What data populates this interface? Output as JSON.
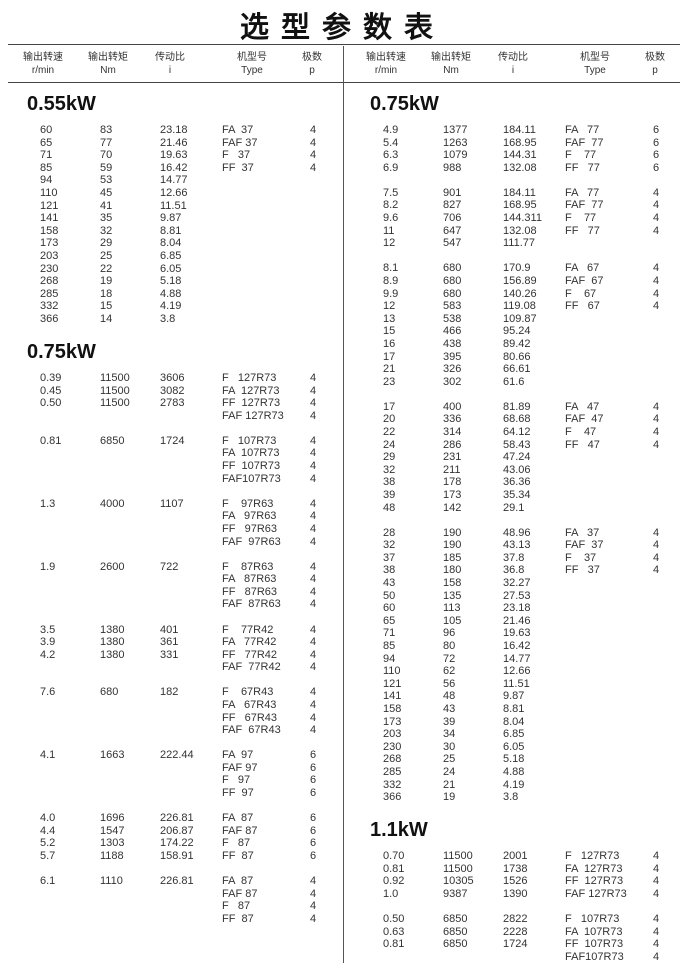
{
  "header": {
    "title": "选型参数表"
  },
  "panels": [
    {
      "columns": [
        {
          "name": "输出转速",
          "unit": "r/min"
        },
        {
          "name": "输出转矩",
          "unit": "Nm"
        },
        {
          "name": "传动比",
          "unit": "i"
        },
        {
          "name": "机型号",
          "unit": "Type"
        },
        {
          "name": "极数",
          "unit": "p"
        }
      ],
      "sections": [
        {
          "power": "0.55kW",
          "groups": [
            [
              [
                "60",
                "83",
                "23.18",
                "FA  37",
                "4"
              ],
              [
                "65",
                "77",
                "21.46",
                "FAF 37",
                "4"
              ],
              [
                "71",
                "70",
                "19.63",
                "F   37",
                "4"
              ],
              [
                "85",
                "59",
                "16.42",
                "FF  37",
                "4"
              ],
              [
                "94",
                "53",
                "14.77"
              ],
              [
                "110",
                "45",
                "12.66"
              ],
              [
                "121",
                "41",
                "11.51"
              ],
              [
                "141",
                "35",
                "9.87"
              ],
              [
                "158",
                "32",
                "8.81"
              ],
              [
                "173",
                "29",
                "8.04"
              ],
              [
                "203",
                "25",
                "6.85"
              ],
              [
                "230",
                "22",
                "6.05"
              ],
              [
                "268",
                "19",
                "5.18"
              ],
              [
                "285",
                "18",
                "4.88"
              ],
              [
                "332",
                "15",
                "4.19"
              ],
              [
                "366",
                "14",
                "3.8"
              ]
            ]
          ]
        },
        {
          "power": "0.75kW",
          "groups": [
            [
              [
                "0.39",
                "11500",
                "3606",
                "F   127R73",
                "4"
              ],
              [
                "0.45",
                "11500",
                "3082",
                "FA  127R73",
                "4"
              ],
              [
                "0.50",
                "11500",
                "2783",
                "FF  127R73",
                "4"
              ],
              [
                null,
                null,
                null,
                "FAF 127R73",
                "4"
              ]
            ],
            [
              [
                "0.81",
                "6850",
                "1724",
                "F   107R73",
                "4"
              ],
              [
                null,
                null,
                null,
                "FA  107R73",
                "4"
              ],
              [
                null,
                null,
                null,
                "FF  107R73",
                "4"
              ],
              [
                null,
                null,
                null,
                "FAF107R73",
                "4"
              ]
            ],
            [
              [
                "1.3",
                "4000",
                "1107",
                "F    97R63",
                "4"
              ],
              [
                null,
                null,
                null,
                "FA   97R63",
                "4"
              ],
              [
                null,
                null,
                null,
                "FF   97R63",
                "4"
              ],
              [
                null,
                null,
                null,
                "FAF  97R63",
                "4"
              ]
            ],
            [
              [
                "1.9",
                "2600",
                "722",
                "F    87R63",
                "4"
              ],
              [
                null,
                null,
                null,
                "FA   87R63",
                "4"
              ],
              [
                null,
                null,
                null,
                "FF   87R63",
                "4"
              ],
              [
                null,
                null,
                null,
                "FAF  87R63",
                "4"
              ]
            ],
            [
              [
                "3.5",
                "1380",
                "401",
                "F    77R42",
                "4"
              ],
              [
                "3.9",
                "1380",
                "361",
                "FA   77R42",
                "4"
              ],
              [
                "4.2",
                "1380",
                "331",
                "FF   77R42",
                "4"
              ],
              [
                null,
                null,
                null,
                "FAF  77R42",
                "4"
              ]
            ],
            [
              [
                "7.6",
                "680",
                "182",
                "F    67R43",
                "4"
              ],
              [
                null,
                null,
                null,
                "FA   67R43",
                "4"
              ],
              [
                null,
                null,
                null,
                "FF   67R43",
                "4"
              ],
              [
                null,
                null,
                null,
                "FAF  67R43",
                "4"
              ]
            ],
            [
              [
                "4.1",
                "1663",
                "222.44",
                "FA  97",
                "6"
              ],
              [
                null,
                null,
                null,
                "FAF 97",
                "6"
              ],
              [
                null,
                null,
                null,
                "F   97",
                "6"
              ],
              [
                null,
                null,
                null,
                "FF  97",
                "6"
              ]
            ],
            [
              [
                "4.0",
                "1696",
                "226.81",
                "FA  87",
                "6"
              ],
              [
                "4.4",
                "1547",
                "206.87",
                "FAF 87",
                "6"
              ],
              [
                "5.2",
                "1303",
                "174.22",
                "F   87",
                "6"
              ],
              [
                "5.7",
                "1188",
                "158.91",
                "FF  87",
                "6"
              ]
            ],
            [
              [
                "6.1",
                "1110",
                "226.81",
                "FA  87",
                "4"
              ],
              [
                null,
                null,
                null,
                "FAF 87",
                "4"
              ],
              [
                null,
                null,
                null,
                "F   87",
                "4"
              ],
              [
                null,
                null,
                null,
                "FF  87",
                "4"
              ]
            ]
          ]
        }
      ]
    },
    {
      "columns": [
        {
          "name": "输出转速",
          "unit": "r/min"
        },
        {
          "name": "输出转矩",
          "unit": "Nm"
        },
        {
          "name": "传动比",
          "unit": "i"
        },
        {
          "name": "机型号",
          "unit": "Type"
        },
        {
          "name": "极数",
          "unit": "p"
        }
      ],
      "sections": [
        {
          "power": "0.75kW",
          "groups": [
            [
              [
                "4.9",
                "1377",
                "184.11",
                "FA   77",
                "6"
              ],
              [
                "5.4",
                "1263",
                "168.95",
                "FAF  77",
                "6"
              ],
              [
                "6.3",
                "1079",
                "144.31",
                "F    77",
                "6"
              ],
              [
                "6.9",
                "988",
                "132.08",
                "FF   77",
                "6"
              ]
            ],
            [
              [
                "7.5",
                "901",
                "184.11",
                "FA   77",
                "4"
              ],
              [
                "8.2",
                "827",
                "168.95",
                "FAF  77",
                "4"
              ],
              [
                "9.6",
                "706",
                "144.311",
                "F    77",
                "4"
              ],
              [
                "11",
                "647",
                "132.08",
                "FF   77",
                "4"
              ],
              [
                "12",
                "547",
                "111.77"
              ]
            ],
            [
              [
                "8.1",
                "680",
                "170.9",
                "FA   67",
                "4"
              ],
              [
                "8.9",
                "680",
                "156.89",
                "FAF  67",
                "4"
              ],
              [
                "9.9",
                "680",
                "140.26",
                "F    67",
                "4"
              ],
              [
                "12",
                "583",
                "119.08",
                "FF   67",
                "4"
              ],
              [
                "13",
                "538",
                "109.87"
              ],
              [
                "15",
                "466",
                "95.24"
              ],
              [
                "16",
                "438",
                "89.42"
              ],
              [
                "17",
                "395",
                "80.66"
              ],
              [
                "21",
                "326",
                "66.61"
              ],
              [
                "23",
                "302",
                "61.6"
              ]
            ],
            [
              [
                "17",
                "400",
                "81.89",
                "FA   47",
                "4"
              ],
              [
                "20",
                "336",
                "68.68",
                "FAF  47",
                "4"
              ],
              [
                "22",
                "314",
                "64.12",
                "F    47",
                "4"
              ],
              [
                "24",
                "286",
                "58.43",
                "FF   47",
                "4"
              ],
              [
                "29",
                "231",
                "47.24"
              ],
              [
                "32",
                "211",
                "43.06"
              ],
              [
                "38",
                "178",
                "36.36"
              ],
              [
                "39",
                "173",
                "35.34"
              ],
              [
                "48",
                "142",
                "29.1"
              ]
            ],
            [
              [
                "28",
                "190",
                "48.96",
                "FA   37",
                "4"
              ],
              [
                "32",
                "190",
                "43.13",
                "FAF  37",
                "4"
              ],
              [
                "37",
                "185",
                "37.8",
                "F    37",
                "4"
              ],
              [
                "38",
                "180",
                "36.8",
                "FF   37",
                "4"
              ],
              [
                "43",
                "158",
                "32.27"
              ],
              [
                "50",
                "135",
                "27.53"
              ],
              [
                "60",
                "113",
                "23.18"
              ],
              [
                "65",
                "105",
                "21.46"
              ],
              [
                "71",
                "96",
                "19.63"
              ],
              [
                "85",
                "80",
                "16.42"
              ],
              [
                "94",
                "72",
                "14.77"
              ],
              [
                "110",
                "62",
                "12.66"
              ],
              [
                "121",
                "56",
                "11.51"
              ],
              [
                "141",
                "48",
                "9.87"
              ],
              [
                "158",
                "43",
                "8.81"
              ],
              [
                "173",
                "39",
                "8.04"
              ],
              [
                "203",
                "34",
                "6.85"
              ],
              [
                "230",
                "30",
                "6.05"
              ],
              [
                "268",
                "25",
                "5.18"
              ],
              [
                "285",
                "24",
                "4.88"
              ],
              [
                "332",
                "21",
                "4.19"
              ],
              [
                "366",
                "19",
                "3.8"
              ]
            ]
          ]
        },
        {
          "power": "1.1kW",
          "groups": [
            [
              [
                "0.70",
                "11500",
                "2001",
                "F   127R73",
                "4"
              ],
              [
                "0.81",
                "11500",
                "1738",
                "FA  127R73",
                "4"
              ],
              [
                "0.92",
                "10305",
                "1526",
                "FF  127R73",
                "4"
              ],
              [
                "1.0",
                "9387",
                "1390",
                "FAF 127R73",
                "4"
              ]
            ],
            [
              [
                "0.50",
                "6850",
                "2822",
                "F   107R73",
                "4"
              ],
              [
                "0.63",
                "6850",
                "2228",
                "FA  107R73",
                "4"
              ],
              [
                "0.81",
                "6850",
                "1724",
                "FF  107R73",
                "4"
              ],
              [
                null,
                null,
                null,
                "FAF107R73",
                "4"
              ]
            ]
          ]
        }
      ]
    }
  ]
}
